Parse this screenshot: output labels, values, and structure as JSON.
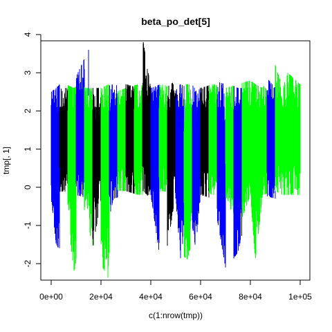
{
  "chart_data": {
    "type": "line",
    "title": "beta_po_det[5]",
    "xlabel": "c(1:nrow(tmp))",
    "ylabel": "tmp[, 1]",
    "xlim": [
      0,
      100000
    ],
    "ylim": [
      -2.45,
      3.8
    ],
    "x_ticks": [
      0,
      20000,
      40000,
      60000,
      80000,
      100000
    ],
    "x_tick_labels": [
      "0e+00",
      "2e+04",
      "4e+04",
      "6e+04",
      "8e+04",
      "1e+05"
    ],
    "y_ticks": [
      -2,
      -1,
      0,
      1,
      2,
      3,
      4
    ],
    "y_tick_labels": [
      "-2",
      "-1",
      "0",
      "1",
      "2",
      "3",
      "4"
    ],
    "grid": false,
    "legend": "none",
    "colors": {
      "black": "#000000",
      "blue": "#0000ff",
      "green": "#00ff00"
    },
    "series": [
      {
        "color": "#000000",
        "x": [
          0,
          5000,
          10000,
          12000,
          14000,
          16000,
          20000,
          22000,
          25000,
          30000,
          35000,
          37000,
          40000,
          42000,
          44000,
          46000,
          50000,
          52000,
          55000,
          60000,
          65000,
          68000,
          70000,
          75000,
          80000,
          85000,
          90000,
          95000,
          100000
        ],
        "ymin": [
          -0.2,
          -0.1,
          -0.2,
          -1.7,
          -1.8,
          -1.9,
          -0.3,
          -0.2,
          -0.1,
          -0.1,
          -0.2,
          -0.1,
          -0.3,
          -1.7,
          -1.9,
          -1.8,
          -0.2,
          -0.3,
          -0.2,
          -0.2,
          -0.3,
          -1.8,
          -0.3,
          -0.3,
          -0.2,
          -0.3,
          -0.3,
          -0.3,
          -0.3
        ],
        "ymax": [
          2.5,
          2.6,
          2.6,
          2.7,
          2.6,
          2.6,
          2.6,
          2.9,
          2.6,
          2.7,
          2.6,
          3.8,
          2.6,
          2.7,
          2.6,
          2.6,
          2.8,
          2.7,
          2.6,
          2.6,
          2.7,
          2.6,
          2.7,
          2.6,
          2.7,
          2.6,
          2.7,
          2.7,
          2.7
        ]
      },
      {
        "color": "#0000ff",
        "x": [
          0,
          2000,
          5000,
          8000,
          10000,
          15000,
          18000,
          20000,
          25000,
          30000,
          35000,
          40000,
          44000,
          47000,
          50000,
          52000,
          55000,
          58000,
          60000,
          65000,
          70000,
          72000,
          75000,
          80000,
          85000,
          90000,
          95000,
          100000
        ],
        "ymin": [
          -0.3,
          -1.5,
          -1.8,
          -0.2,
          -0.2,
          -0.3,
          -1.5,
          -1.8,
          -0.3,
          -0.2,
          -0.2,
          -0.2,
          -2.0,
          -1.5,
          -0.3,
          -1.9,
          -0.3,
          -1.6,
          -0.2,
          -0.2,
          -2.1,
          -2.0,
          -1.7,
          -0.3,
          -0.2,
          -0.3,
          -0.2,
          -0.4
        ],
        "ymax": [
          2.5,
          2.6,
          2.8,
          2.7,
          2.9,
          3.6,
          2.7,
          2.6,
          2.7,
          2.6,
          2.8,
          2.6,
          2.7,
          2.6,
          2.6,
          2.7,
          2.6,
          2.7,
          2.6,
          2.8,
          2.7,
          2.7,
          2.6,
          2.6,
          3.0,
          2.6,
          2.6,
          2.6
        ]
      },
      {
        "color": "#00ff00",
        "x": [
          0,
          3000,
          6000,
          9000,
          11000,
          14000,
          17000,
          20000,
          23000,
          26000,
          30000,
          35000,
          40000,
          45000,
          48000,
          50000,
          53000,
          55000,
          60000,
          65000,
          70000,
          75000,
          80000,
          82000,
          85000,
          90000,
          93000,
          95000,
          100000
        ],
        "ymin": [
          -0.1,
          -0.2,
          -0.3,
          -2.2,
          -2.0,
          -0.2,
          -2.1,
          -2.0,
          -2.4,
          -0.1,
          -0.1,
          -0.2,
          -0.2,
          -0.1,
          -0.2,
          -1.9,
          -1.8,
          -1.9,
          -0.1,
          -0.2,
          -0.2,
          -1.1,
          -0.2,
          -1.9,
          -0.2,
          -0.1,
          -0.2,
          -0.2,
          -0.2
        ],
        "ymax": [
          2.6,
          2.5,
          2.7,
          2.6,
          2.7,
          2.6,
          2.6,
          2.6,
          2.7,
          2.5,
          2.6,
          2.7,
          2.6,
          2.7,
          2.6,
          2.6,
          2.7,
          2.7,
          2.6,
          2.7,
          2.6,
          2.7,
          2.8,
          2.7,
          2.6,
          3.2,
          2.6,
          3.0,
          2.7
        ]
      }
    ],
    "segment_order": [
      "#0000ff",
      "#000000",
      "#00ff00",
      "#0000ff",
      "#00ff00",
      "#000000",
      "#00ff00",
      "#0000ff",
      "#00ff00",
      "#000000",
      "#00ff00",
      "#000000",
      "#0000ff",
      "#00ff00",
      "#000000",
      "#0000ff",
      "#00ff00",
      "#0000ff",
      "#000000",
      "#00ff00",
      "#0000ff",
      "#00ff00",
      "#0000ff",
      "#00ff00",
      "#00ff00",
      "#00ff00",
      "#0000ff",
      "#00ff00",
      "#00ff00",
      "#00ff00"
    ]
  }
}
